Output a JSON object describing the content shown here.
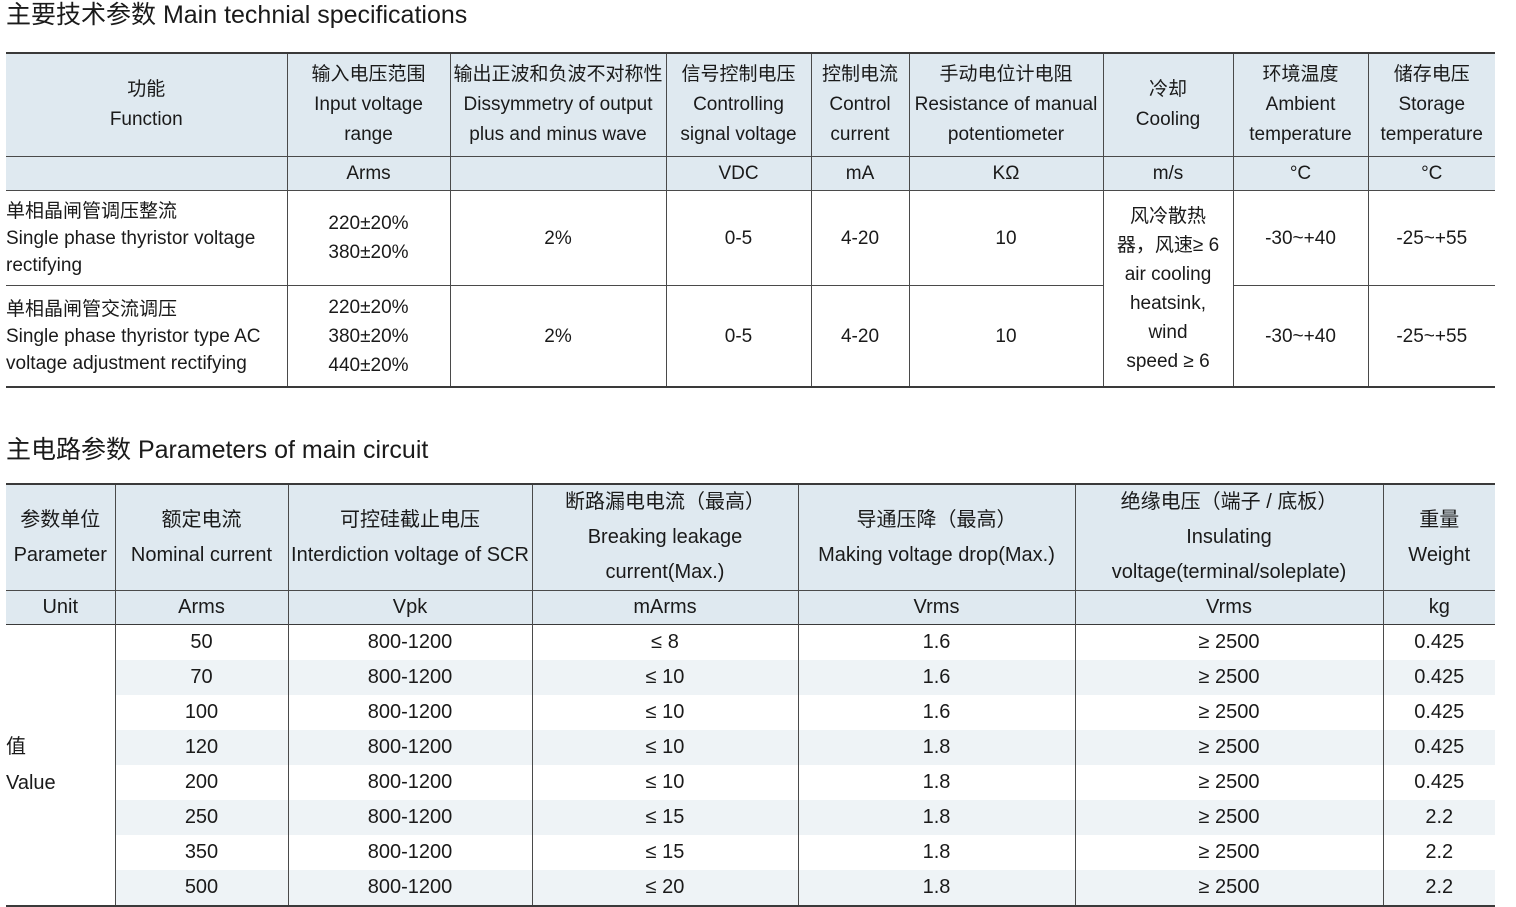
{
  "section1_title": "主要技术参数 Main technial specifications",
  "spec_table": {
    "headers": [
      {
        "cn": "功能",
        "en": "Function"
      },
      {
        "cn": "输入电压范围",
        "en": "Input voltage range"
      },
      {
        "cn": "输出正波和负波不对称性",
        "en": "Dissymmetry of output plus and minus wave"
      },
      {
        "cn": "信号控制电压",
        "en": "Controlling signal voltage"
      },
      {
        "cn": "控制电流",
        "en": "Control current"
      },
      {
        "cn": "手动电位计电阻",
        "en": "Resistance of manual potentiometer"
      },
      {
        "cn": "冷却",
        "en": "Cooling"
      },
      {
        "cn": "环境温度",
        "en": "Ambient temperature"
      },
      {
        "cn": "储存电压",
        "en": "Storage temperature"
      }
    ],
    "units": [
      "",
      "Arms",
      "",
      "VDC",
      "mA",
      "KΩ",
      "m/s",
      "°C",
      "°C"
    ],
    "rows": [
      {
        "function_cn": "单相晶闸管调压整流",
        "function_en": "Single phase thyristor voltage rectifying",
        "input_voltage": [
          "220±20%",
          "380±20%"
        ],
        "dissymmetry": "2%",
        "control_voltage": "0-5",
        "control_current": "4-20",
        "resistance": "10",
        "ambient": "-30~+40",
        "storage": "-25~+55"
      },
      {
        "function_cn": "单相晶闸管交流调压",
        "function_en": "Single phase thyristor type AC voltage adjustment rectifying",
        "input_voltage": [
          "220±20%",
          "380±20%",
          "440±20%"
        ],
        "dissymmetry": "2%",
        "control_voltage": "0-5",
        "control_current": "4-20",
        "resistance": "10",
        "ambient": "-30~+40",
        "storage": "-25~+55"
      }
    ],
    "cooling_lines": [
      "风冷散热",
      "器，风速≥ 6",
      "air cooling",
      "heatsink,",
      "wind",
      "speed ≥ 6"
    ]
  },
  "section2_title": "主电路参数 Parameters of main circuit",
  "params_table": {
    "headers": [
      {
        "cn": "参数单位",
        "en": "Parameter"
      },
      {
        "cn": "额定电流",
        "en": "Nominal current"
      },
      {
        "cn": "可控硅截止电压",
        "en": "Interdiction voltage of SCR"
      },
      {
        "cn": "断路漏电电流（最高）",
        "en": "Breaking leakage current(Max.)"
      },
      {
        "cn": "导通压降（最高）",
        "en": "Making voltage drop(Max.)"
      },
      {
        "cn": "绝缘电压（端子 / 底板）",
        "en": "Insulating voltage(terminal/soleplate)"
      },
      {
        "cn": "重量",
        "en": "Weight"
      }
    ],
    "units": [
      "Unit",
      "Arms",
      "Vpk",
      "mArms",
      "Vrms",
      "Vrms",
      "kg"
    ],
    "value_label_cn": "值",
    "value_label_en": "Value",
    "rows": [
      [
        "50",
        "800-1200",
        "≤ 8",
        "1.6",
        "≥ 2500",
        "0.425"
      ],
      [
        "70",
        "800-1200",
        "≤ 10",
        "1.6",
        "≥ 2500",
        "0.425"
      ],
      [
        "100",
        "800-1200",
        "≤ 10",
        "1.6",
        "≥ 2500",
        "0.425"
      ],
      [
        "120",
        "800-1200",
        "≤ 10",
        "1.8",
        "≥ 2500",
        "0.425"
      ],
      [
        "200",
        "800-1200",
        "≤ 10",
        "1.8",
        "≥ 2500",
        "0.425"
      ],
      [
        "250",
        "800-1200",
        "≤ 15",
        "1.8",
        "≥ 2500",
        "2.2"
      ],
      [
        "350",
        "800-1200",
        "≤ 15",
        "1.8",
        "≥ 2500",
        "2.2"
      ],
      [
        "500",
        "800-1200",
        "≤ 20",
        "1.8",
        "≥ 2500",
        "2.2"
      ]
    ]
  }
}
